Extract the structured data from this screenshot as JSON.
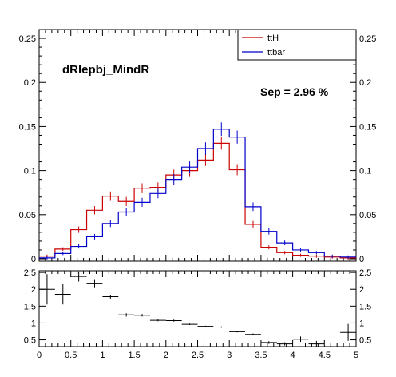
{
  "chart_data": [
    {
      "type": "histogram",
      "title": "dRlepbj_MindR",
      "annotation": "Sep = 2.96 %",
      "xlim": [
        0,
        5
      ],
      "ylim": [
        0,
        0.26
      ],
      "bin_width": 0.25,
      "x_ticks": [
        "0",
        "0.5",
        "1",
        "1.5",
        "2",
        "2.5",
        "3",
        "3.5",
        "4",
        "4.5",
        "5"
      ],
      "y_ticks": [
        "0",
        "0.05",
        "0.1",
        "0.15",
        "0.2",
        "0.25"
      ],
      "y_tick_values": [
        0,
        0.05,
        0.1,
        0.15,
        0.2,
        0.25
      ],
      "legend_position": "top-right",
      "series": [
        {
          "name": "ttH",
          "color": "#cc0000",
          "values": [
            0.003,
            0.011,
            0.033,
            0.055,
            0.071,
            0.065,
            0.08,
            0.081,
            0.095,
            0.1,
            0.112,
            0.131,
            0.101,
            0.039,
            0.013,
            0.007,
            0.004,
            0.003,
            0.002,
            0.001
          ]
        },
        {
          "name": "ttbar",
          "color": "#0000cc",
          "values": [
            0.001,
            0.006,
            0.014,
            0.025,
            0.04,
            0.053,
            0.064,
            0.074,
            0.09,
            0.104,
            0.125,
            0.147,
            0.138,
            0.059,
            0.031,
            0.018,
            0.01,
            0.007,
            0.003,
            0.002
          ]
        }
      ]
    },
    {
      "type": "ratio",
      "xlim": [
        0,
        5
      ],
      "ylim": [
        0.3,
        2.55
      ],
      "x_ticks": [
        "0",
        "0.5",
        "1",
        "1.5",
        "2",
        "2.5",
        "3",
        "3.5",
        "4",
        "4.5",
        "5"
      ],
      "y_ticks": [
        "0.5",
        "1",
        "1.5",
        "2",
        "2.5"
      ],
      "y_tick_values": [
        0.5,
        1,
        1.5,
        2,
        2.5
      ],
      "reference_line": 1,
      "color": "#000000",
      "values": [
        2.0,
        1.85,
        2.38,
        2.18,
        1.78,
        1.24,
        1.23,
        1.08,
        1.07,
        0.96,
        0.9,
        0.88,
        0.74,
        0.66,
        0.42,
        0.38,
        0.52,
        0.38,
        null,
        0.72
      ],
      "errors": [
        0.45,
        0.3,
        0.15,
        0.12,
        0.06,
        0.05,
        0.04,
        0.03,
        0.03,
        0.02,
        0.02,
        0.02,
        0.02,
        0.03,
        0.04,
        0.05,
        0.08,
        0.09,
        null,
        0.25
      ]
    }
  ]
}
